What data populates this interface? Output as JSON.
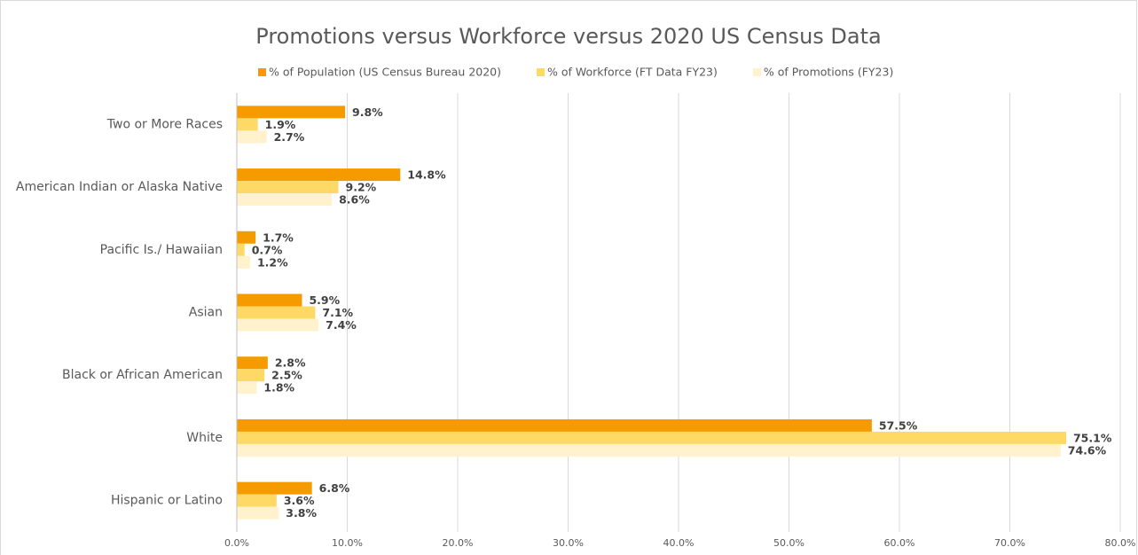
{
  "chart_data": {
    "type": "bar",
    "orientation": "horizontal",
    "title": "Promotions versus Workforce versus 2020 US Census Data",
    "categories": [
      "Two or More Races",
      "American Indian or Alaska Native",
      "Pacific Is./ Hawaiian",
      "Asian",
      "Black or African American",
      "White",
      "Hispanic or Latino"
    ],
    "series": [
      {
        "name": "% of Population (US Census Bureau 2020)",
        "color": "#f59b00",
        "values": [
          9.8,
          14.8,
          1.7,
          5.9,
          2.8,
          57.5,
          6.8
        ],
        "value_labels": [
          "9.8%",
          "14.8%",
          "1.7%",
          "5.9%",
          "2.8%",
          "57.5%",
          "6.8%"
        ]
      },
      {
        "name": "% of Workforce (FT Data FY23)",
        "color": "#ffd966",
        "values": [
          1.9,
          9.2,
          0.7,
          7.1,
          2.5,
          75.1,
          3.6
        ],
        "value_labels": [
          "1.9%",
          "9.2%",
          "0.7%",
          "7.1%",
          "2.5%",
          "75.1%",
          "3.6%"
        ]
      },
      {
        "name": "% of Promotions (FY23)",
        "color": "#fff2cc",
        "values": [
          2.7,
          8.6,
          1.2,
          7.4,
          1.8,
          74.6,
          3.8
        ],
        "value_labels": [
          "2.7%",
          "8.6%",
          "1.2%",
          "7.4%",
          "1.8%",
          "74.6%",
          "3.8%"
        ]
      }
    ],
    "xlim": [
      0,
      80
    ],
    "xticks": [
      {
        "value": 0,
        "label": "0.0%"
      },
      {
        "value": 10,
        "label": "10.0%"
      },
      {
        "value": 20,
        "label": "20.0%"
      },
      {
        "value": 30,
        "label": "30.0%"
      },
      {
        "value": 40,
        "label": "40.0%"
      },
      {
        "value": 50,
        "label": "50.0%"
      },
      {
        "value": 60,
        "label": "60.0%"
      },
      {
        "value": 70,
        "label": "70.0%"
      },
      {
        "value": 80,
        "label": "80.0%"
      }
    ],
    "grid": true,
    "legend": "top"
  }
}
